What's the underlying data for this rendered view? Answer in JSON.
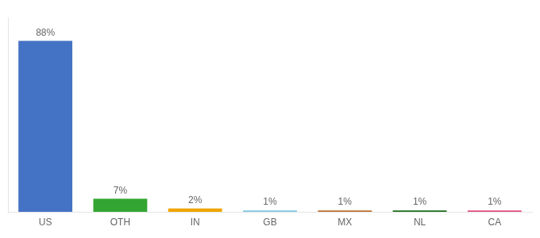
{
  "chart_data": {
    "type": "bar",
    "categories": [
      "US",
      "OTH",
      "IN",
      "GB",
      "MX",
      "NL",
      "CA"
    ],
    "values": [
      88,
      7,
      2,
      1,
      1,
      1,
      1
    ],
    "value_labels": [
      "88%",
      "7%",
      "2%",
      "1%",
      "1%",
      "1%",
      "1%"
    ],
    "colors": [
      "#4472c4",
      "#33a532",
      "#f0a500",
      "#7ec8e3",
      "#c07030",
      "#1a6e1a",
      "#e05080"
    ],
    "ylim": [
      0,
      100
    ],
    "grid": false,
    "data_labels": true,
    "tick_labels": "x"
  }
}
